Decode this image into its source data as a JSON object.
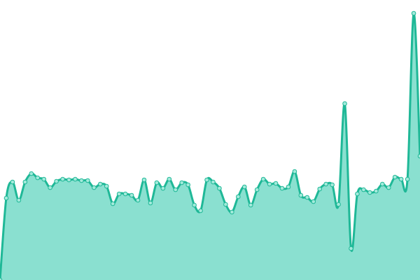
{
  "chart_data": {
    "type": "area",
    "title": "",
    "xlabel": "",
    "ylabel": "",
    "grid": false,
    "legend": "none",
    "ylim": [
      0,
      400
    ],
    "colors": {
      "line": "#1fb897",
      "fill": "#8ae0d0",
      "point_fill": "#a3eadb",
      "point_stroke": "#1fb897"
    },
    "series": [
      {
        "x": [
          0,
          1,
          2,
          3,
          4,
          5,
          6,
          7,
          8,
          9,
          10,
          11,
          12,
          13,
          14,
          15,
          16,
          17,
          18,
          19,
          20,
          21,
          22,
          23,
          24,
          25,
          26,
          27,
          28,
          29,
          30,
          31,
          32,
          33,
          34,
          35,
          36,
          37,
          38,
          39,
          40,
          41,
          42,
          43,
          44,
          45,
          46,
          47,
          48,
          49,
          50,
          51,
          52,
          53,
          54,
          55,
          56,
          57,
          58,
          59,
          60,
          61,
          62,
          63,
          64,
          65,
          66,
          67
        ],
        "values": [
          0,
          117,
          140,
          114,
          140,
          152,
          146,
          144,
          132,
          141,
          144,
          143,
          144,
          142,
          142,
          132,
          137,
          134,
          109,
          123,
          123,
          121,
          114,
          143,
          110,
          139,
          131,
          144,
          129,
          139,
          136,
          107,
          99,
          143,
          140,
          131,
          108,
          97,
          119,
          133,
          107,
          129,
          144,
          137,
          138,
          131,
          133,
          155,
          121,
          118,
          112,
          130,
          137,
          136,
          108,
          252,
          45,
          123,
          129,
          125,
          127,
          137,
          132,
          147,
          144,
          144,
          381,
          177
        ]
      }
    ]
  }
}
